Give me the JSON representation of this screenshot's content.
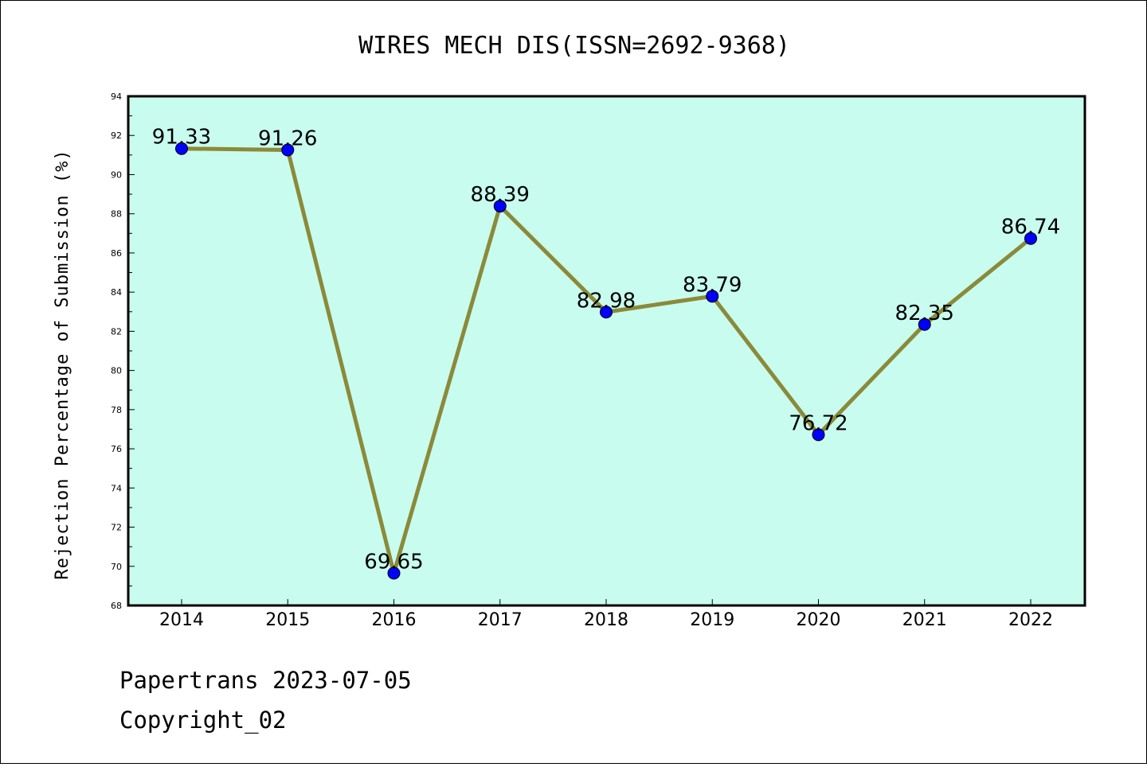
{
  "chart_data": {
    "type": "line",
    "title": "WIRES MECH DIS(ISSN=2692-9368)",
    "ylabel": "Rejection Percentage of Submission (%)",
    "xlabel": "",
    "categories": [
      "2014",
      "2015",
      "2016",
      "2017",
      "2018",
      "2019",
      "2020",
      "2021",
      "2022"
    ],
    "values": [
      91.33,
      91.26,
      69.65,
      88.39,
      82.98,
      83.79,
      76.72,
      82.35,
      86.74
    ],
    "data_labels": [
      "91.33",
      "91.26",
      "69.65",
      "88.39",
      "82.98",
      "83.79",
      "76.72",
      "82.35",
      "86.74"
    ],
    "ylim": [
      68,
      94
    ],
    "yticks": [
      "68",
      "70",
      "72",
      "74",
      "76",
      "78",
      "80",
      "82",
      "84",
      "86",
      "88",
      "90",
      "92",
      "94"
    ],
    "grid": false,
    "legend": "none",
    "colors": {
      "plot_background": "#c8fcee",
      "line": "#8b8a3a",
      "marker": "#0000ff"
    }
  },
  "footer": {
    "line1": "Papertrans 2023-07-05",
    "line2": "Copyright_02"
  }
}
